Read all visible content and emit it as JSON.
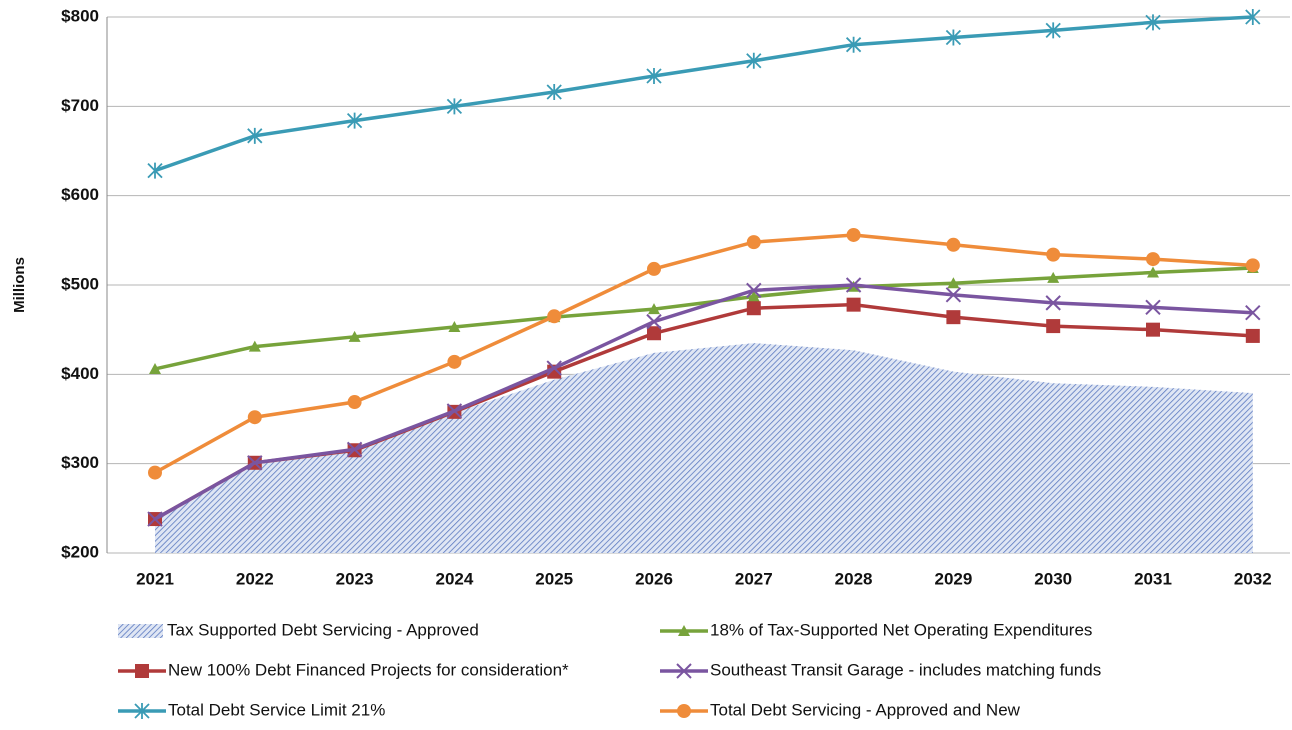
{
  "chart_data": {
    "type": "line",
    "ylabel": "Millions",
    "categories": [
      "2021",
      "2022",
      "2023",
      "2024",
      "2025",
      "2026",
      "2027",
      "2028",
      "2029",
      "2030",
      "2031",
      "2032"
    ],
    "ylim": [
      200,
      800
    ],
    "yticks": [
      {
        "value": 200,
        "label": "$200"
      },
      {
        "value": 300,
        "label": "$300"
      },
      {
        "value": 400,
        "label": "$400"
      },
      {
        "value": 500,
        "label": "$500"
      },
      {
        "value": 600,
        "label": "$600"
      },
      {
        "value": 700,
        "label": "$700"
      },
      {
        "value": 800,
        "label": "$800"
      }
    ],
    "grid": true,
    "series": [
      {
        "name": "Tax Supported Debt Servicing - Approved",
        "color": "#4f6fb8",
        "style": "area",
        "values": [
          237,
          300,
          315,
          357,
          394,
          424,
          435,
          427,
          403,
          390,
          386,
          379
        ]
      },
      {
        "name": "18% of Tax-Supported Net Operating Expenditures",
        "color": "#77a33b",
        "marker": "triangle",
        "values": [
          406,
          431,
          442,
          453,
          464,
          473,
          487,
          498,
          502,
          508,
          514,
          519
        ]
      },
      {
        "name": "New 100% Debt Financed Projects for consideration*",
        "color": "#b03a3a",
        "marker": "square",
        "values": [
          238,
          301,
          315,
          358,
          403,
          446,
          474,
          478,
          464,
          454,
          450,
          443
        ]
      },
      {
        "name": "Southeast Transit Garage - includes matching funds",
        "color": "#7a55a0",
        "marker": "x",
        "values": [
          238,
          301,
          316,
          359,
          407,
          459,
          494,
          500,
          489,
          480,
          475,
          469
        ]
      },
      {
        "name": "Total Debt Service Limit 21%",
        "color": "#3a9bb5",
        "marker": "asterisk",
        "values": [
          628,
          667,
          684,
          700,
          716,
          734,
          751,
          769,
          777,
          785,
          794,
          800
        ]
      },
      {
        "name": "Total Debt Servicing - Approved and New",
        "color": "#ef8c3a",
        "marker": "circle",
        "values": [
          290,
          352,
          369,
          414,
          465,
          518,
          548,
          556,
          545,
          534,
          529,
          522
        ]
      }
    ]
  }
}
